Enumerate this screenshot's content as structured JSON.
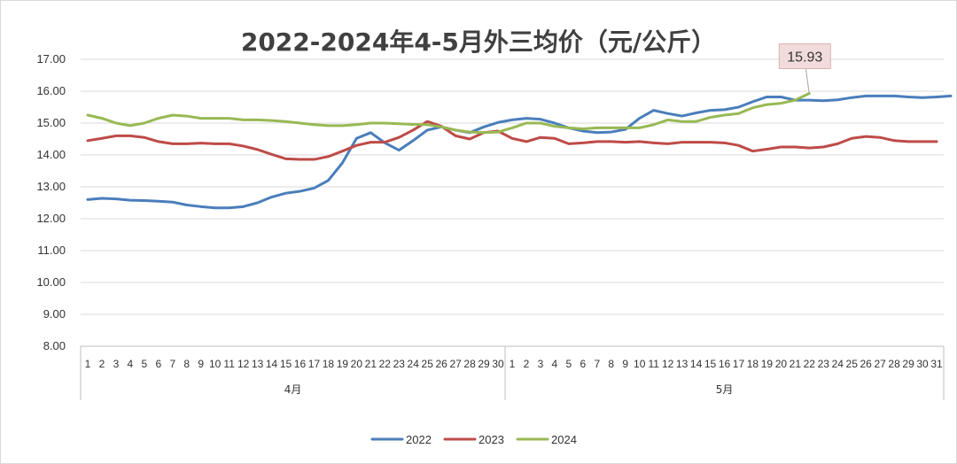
{
  "chart_data": {
    "type": "line",
    "title": "2022-2024年4-5月外三均价（元/公斤）",
    "ylim": [
      8,
      17
    ],
    "yticks": [
      "17.00",
      "16.00",
      "15.00",
      "14.00",
      "13.00",
      "12.00",
      "11.00",
      "10.00",
      "9.00",
      "8.00"
    ],
    "grid": true,
    "legend": "bottom",
    "months": [
      {
        "name": "4月",
        "days": [
          "1",
          "2",
          "3",
          "4",
          "5",
          "6",
          "7",
          "8",
          "9",
          "10",
          "11",
          "12",
          "13",
          "14",
          "15",
          "16",
          "17",
          "18",
          "19",
          "20",
          "21",
          "22",
          "23",
          "24",
          "25",
          "26",
          "27",
          "28",
          "29",
          "30"
        ]
      },
      {
        "name": "5月",
        "days": [
          "1",
          "2",
          "3",
          "4",
          "5",
          "6",
          "7",
          "8",
          "9",
          "10",
          "11",
          "12",
          "13",
          "14",
          "15",
          "16",
          "17",
          "18",
          "19",
          "20",
          "21",
          "22",
          "23",
          "24",
          "25",
          "26",
          "27",
          "28",
          "29",
          "30",
          "31"
        ]
      }
    ],
    "series": [
      {
        "name": "2022",
        "color": "#4A7EBB",
        "values": [
          12.6,
          12.64,
          12.62,
          12.58,
          12.57,
          12.55,
          12.52,
          12.43,
          12.38,
          12.34,
          12.34,
          12.38,
          12.5,
          12.68,
          12.8,
          12.86,
          12.96,
          13.2,
          13.75,
          14.52,
          14.7,
          14.38,
          14.15,
          14.45,
          14.78,
          14.88,
          14.78,
          14.7,
          14.88,
          15.02,
          15.1,
          15.15,
          15.12,
          15.0,
          14.85,
          14.75,
          14.7,
          14.72,
          14.8,
          15.15,
          15.4,
          15.3,
          15.22,
          15.32,
          15.4,
          15.42,
          15.5,
          15.67,
          15.82,
          15.82,
          15.72,
          15.72,
          15.7,
          15.73,
          15.8,
          15.85,
          15.85,
          15.85,
          15.82,
          15.8,
          15.82,
          15.85
        ]
      },
      {
        "name": "2023",
        "color": "#BE4B48",
        "values": [
          14.45,
          14.52,
          14.6,
          14.6,
          14.55,
          14.42,
          14.35,
          14.35,
          14.37,
          14.35,
          14.35,
          14.28,
          14.17,
          14.02,
          13.88,
          13.86,
          13.86,
          13.95,
          14.12,
          14.3,
          14.4,
          14.4,
          14.55,
          14.78,
          15.05,
          14.9,
          14.6,
          14.5,
          14.7,
          14.75,
          14.52,
          14.42,
          14.55,
          14.52,
          14.35,
          14.38,
          14.42,
          14.42,
          14.4,
          14.42,
          14.38,
          14.35,
          14.4,
          14.4,
          14.4,
          14.38,
          14.3,
          14.12,
          14.18,
          14.25,
          14.25,
          14.22,
          14.25,
          14.35,
          14.52,
          14.58,
          14.55,
          14.45,
          14.42,
          14.42,
          14.42
        ]
      },
      {
        "name": "2024",
        "color": "#98B954",
        "values": [
          15.25,
          15.15,
          15.0,
          14.92,
          15.0,
          15.15,
          15.25,
          15.22,
          15.15,
          15.15,
          15.15,
          15.1,
          15.1,
          15.08,
          15.05,
          15.0,
          14.95,
          14.92,
          14.92,
          14.95,
          15.0,
          15.0,
          14.98,
          14.96,
          14.95,
          14.88,
          14.78,
          14.72,
          14.7,
          14.72,
          14.85,
          15.0,
          15.0,
          14.9,
          14.85,
          14.82,
          14.85,
          14.85,
          14.85,
          14.85,
          14.95,
          15.1,
          15.05,
          15.05,
          15.18,
          15.25,
          15.3,
          15.48,
          15.58,
          15.62,
          15.72,
          15.93
        ]
      }
    ],
    "callout": {
      "label": "15.93",
      "series": "2024"
    }
  }
}
